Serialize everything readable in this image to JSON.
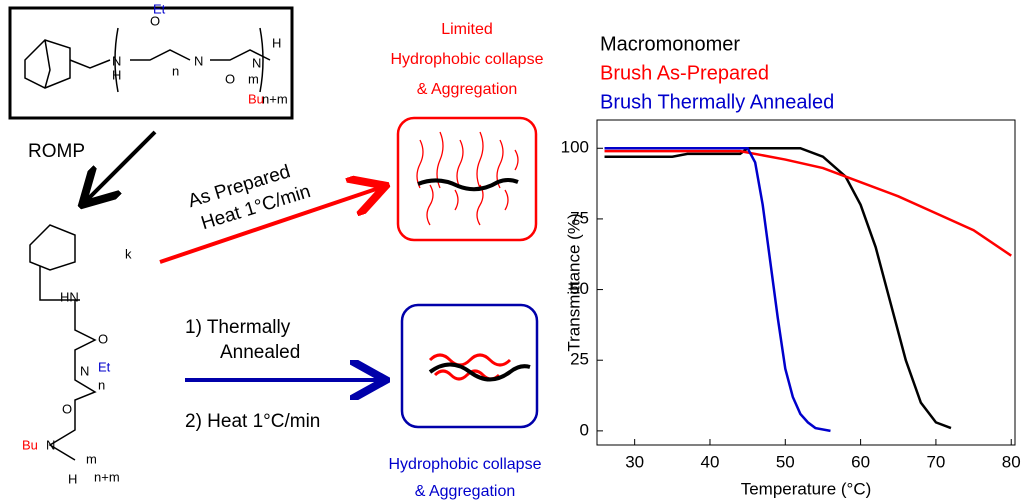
{
  "diagram": {
    "romp": "ROMP",
    "as_prepared": "As Prepared",
    "heat_top": "Heat 1°C/min",
    "annealed_1": "1)  Thermally",
    "annealed_2": "Annealed",
    "heat_bottom": "2) Heat 1°C/min",
    "limited_1": "Limited",
    "limited_2": "Hydrophobic collapse",
    "limited_3": "& Aggregation",
    "collapse_1": "Hydrophobic collapse",
    "collapse_2": "& Aggregation",
    "monomer_labels": [
      "O",
      "Et",
      "N",
      "N",
      "H",
      "n",
      "O",
      "N",
      "m",
      "Bu",
      "H",
      "n+m"
    ],
    "brush_labels": [
      "k",
      "HN",
      "O",
      "N",
      "Et",
      "n",
      "O",
      "Bu",
      "N",
      "m",
      "H",
      "n+m"
    ]
  },
  "chart_data": {
    "type": "line",
    "xlabel": "Temperature (°C)",
    "ylabel": "Transmittance (%)",
    "xlim": [
      25,
      80.5
    ],
    "ylim": [
      -5,
      110
    ],
    "xticks": [
      30,
      40,
      50,
      60,
      70,
      80
    ],
    "yticks": [
      0,
      25,
      50,
      75,
      100
    ],
    "series": [
      {
        "name": "Macromonomer",
        "color": "#000000",
        "x": [
          26,
          30,
          35,
          37,
          40,
          44,
          45,
          48,
          52,
          55,
          58,
          60,
          62,
          64,
          66,
          68,
          70,
          72
        ],
        "values": [
          97,
          97,
          97,
          98,
          98,
          98,
          100,
          100,
          100,
          97,
          90,
          80,
          65,
          45,
          25,
          10,
          3,
          1
        ]
      },
      {
        "name": "Brush As-Prepared",
        "color": "#ff0000",
        "x": [
          26,
          35,
          44,
          50,
          55,
          60,
          65,
          70,
          75,
          80
        ],
        "values": [
          99,
          99,
          99,
          96,
          93,
          88,
          83,
          77,
          71,
          62
        ]
      },
      {
        "name": "Brush Thermally Annealed",
        "color": "#0000cc",
        "x": [
          26,
          35,
          45,
          46,
          47,
          48,
          49,
          50,
          51,
          52,
          53,
          54,
          56
        ],
        "values": [
          100,
          100,
          100,
          95,
          80,
          60,
          40,
          22,
          12,
          6,
          3,
          1,
          0
        ]
      }
    ]
  }
}
